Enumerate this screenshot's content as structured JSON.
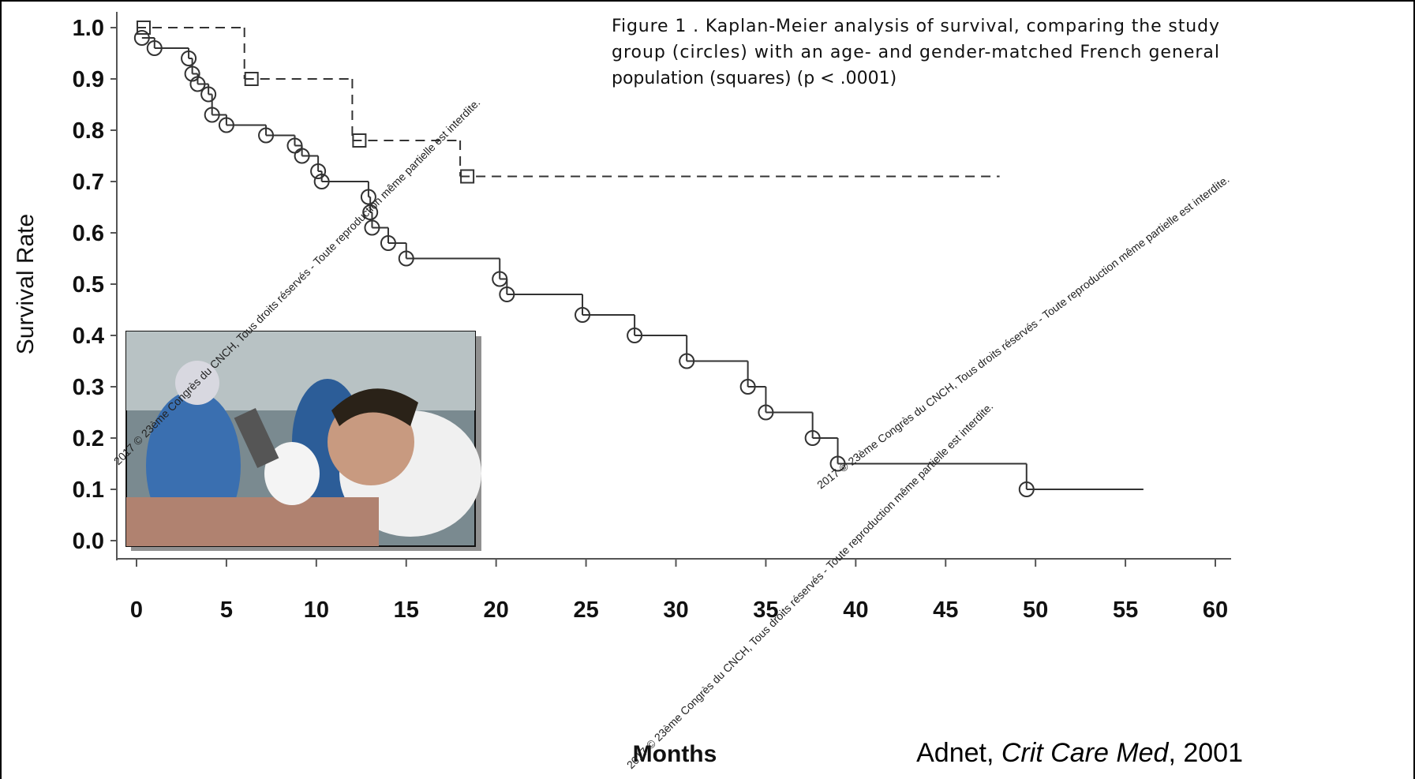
{
  "chart_data": {
    "type": "km_step",
    "caption": "Figure 1 . Kaplan-Meier analysis of survival, comparing the study group (circles) with an age- and gender-matched French general population (squares) (p < .0001)",
    "xlabel": "Months",
    "ylabel": "Survival Rate",
    "citation": {
      "author": "Adnet, ",
      "journal": "Crit Care Med",
      "year": ", 2001"
    },
    "watermark": "2017 © 23ème Congrès du CNCH, Tous droits réservés - Toute reproduction même partielle est interdite.",
    "xlim": [
      0,
      60
    ],
    "ylim": [
      0,
      1
    ],
    "xticks": [
      0,
      5,
      10,
      15,
      20,
      25,
      30,
      35,
      40,
      45,
      50,
      55,
      60
    ],
    "yticks": [
      {
        "value": 1,
        "label": "1.0"
      },
      0.9,
      0.8,
      0.7,
      0.6,
      0.5,
      0.4,
      0.3,
      0.2,
      0.1,
      {
        "value": 0,
        "label": "0.0"
      }
    ],
    "series": [
      {
        "marker": "square",
        "dashed": true,
        "color": "#333333",
        "x": [
          0,
          6,
          12,
          18
        ],
        "values": [
          1.0,
          0.9,
          0.78,
          0.71
        ],
        "xend": 48
      },
      {
        "marker": "circle",
        "dashed": false,
        "color": "#333333",
        "x": [
          0.3,
          1,
          2.9,
          3.1,
          3.4,
          4,
          4.2,
          5,
          7.2,
          8.8,
          9.2,
          10.1,
          10.3,
          12.9,
          13,
          13.1,
          14,
          15,
          20.2,
          20.6,
          24.8,
          27.7,
          30.6,
          34,
          35,
          37.6,
          39,
          49.5
        ],
        "values": [
          0.98,
          0.96,
          0.94,
          0.91,
          0.89,
          0.87,
          0.83,
          0.81,
          0.79,
          0.77,
          0.75,
          0.72,
          0.7,
          0.67,
          0.64,
          0.61,
          0.58,
          0.55,
          0.51,
          0.48,
          0.44,
          0.4,
          0.35,
          0.3,
          0.25,
          0.2,
          0.15,
          0.1
        ],
        "xend": 56
      }
    ]
  }
}
